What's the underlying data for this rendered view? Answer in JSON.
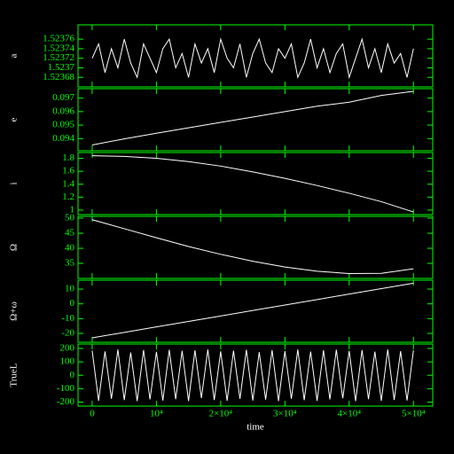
{
  "chart_data": [
    {
      "type": "line",
      "ylabel": "a",
      "color": "#ffffff",
      "x": [
        0,
        1000,
        2000,
        3000,
        4000,
        5000,
        6000,
        7000,
        8000,
        9000,
        10000,
        11000,
        12000,
        13000,
        14000,
        15000,
        16000,
        17000,
        18000,
        19000,
        20000,
        21000,
        22000,
        23000,
        24000,
        25000,
        26000,
        27000,
        28000,
        29000,
        30000,
        31000,
        32000,
        33000,
        34000,
        35000,
        36000,
        37000,
        38000,
        39000,
        40000,
        41000,
        42000,
        43000,
        44000,
        45000,
        46000,
        47000,
        48000,
        49000,
        50000
      ],
      "values": [
        1.52372,
        1.52375,
        1.52369,
        1.52374,
        1.5237,
        1.52376,
        1.52371,
        1.52368,
        1.52375,
        1.52372,
        1.52369,
        1.52374,
        1.52376,
        1.5237,
        1.52373,
        1.52368,
        1.52375,
        1.52371,
        1.52374,
        1.52369,
        1.52376,
        1.52372,
        1.5237,
        1.52375,
        1.52368,
        1.52373,
        1.52376,
        1.52371,
        1.52369,
        1.52374,
        1.52372,
        1.52375,
        1.52368,
        1.52371,
        1.52376,
        1.5237,
        1.52374,
        1.52369,
        1.52373,
        1.52375,
        1.52368,
        1.52372,
        1.52376,
        1.5237,
        1.52374,
        1.52369,
        1.52375,
        1.52371,
        1.52373,
        1.52368,
        1.52374
      ],
      "xlim": [
        -2200,
        53000
      ],
      "ylim": [
        1.52366,
        1.52379
      ],
      "yticks": [
        1.52368,
        1.5237,
        1.52372,
        1.52374,
        1.52376
      ]
    },
    {
      "type": "line",
      "ylabel": "e",
      "color": "#ffffff",
      "x": [
        0,
        5000,
        10000,
        15000,
        20000,
        25000,
        30000,
        35000,
        40000,
        45000,
        50000
      ],
      "values": [
        0.09353,
        0.09398,
        0.0944,
        0.0948,
        0.0952,
        0.0956,
        0.096,
        0.0964,
        0.0967,
        0.0972,
        0.0975
      ],
      "xlim": [
        -2200,
        53000
      ],
      "ylim": [
        0.0931,
        0.0977
      ],
      "yticks": [
        0.094,
        0.095,
        0.096,
        0.097
      ]
    },
    {
      "type": "line",
      "ylabel": "i",
      "color": "#ffffff",
      "x": [
        0,
        5000,
        10000,
        15000,
        20000,
        25000,
        30000,
        35000,
        40000,
        45000,
        50000
      ],
      "values": [
        1.84,
        1.83,
        1.8,
        1.75,
        1.68,
        1.59,
        1.49,
        1.38,
        1.26,
        1.13,
        0.97
      ],
      "xlim": [
        -2200,
        53000
      ],
      "ylim": [
        0.93,
        1.89
      ],
      "yticks": [
        1,
        1.2,
        1.4,
        1.6,
        1.8
      ]
    },
    {
      "type": "line",
      "ylabel": "Ω",
      "color": "#ffffff",
      "x": [
        0,
        5000,
        10000,
        15000,
        20000,
        25000,
        30000,
        35000,
        40000,
        45000,
        50000
      ],
      "values": [
        49.5,
        46.5,
        43.5,
        40.6,
        38,
        35.7,
        33.8,
        32.4,
        31.6,
        31.7,
        33.2
      ],
      "xlim": [
        -2200,
        53000
      ],
      "ylim": [
        30,
        50.6
      ],
      "yticks": [
        35,
        40,
        45,
        50
      ]
    },
    {
      "type": "line",
      "ylabel": "Ω+ω",
      "color": "#ffffff",
      "x": [
        0,
        5000,
        10000,
        15000,
        20000,
        25000,
        30000,
        35000,
        40000,
        45000,
        50000
      ],
      "values": [
        -23,
        -19.3,
        -15.6,
        -11.9,
        -8.2,
        -4.5,
        -0.8,
        2.9,
        6.6,
        10.3,
        14
      ],
      "xlim": [
        -2200,
        53000
      ],
      "ylim": [
        -26,
        16
      ],
      "yticks": [
        -20,
        -10,
        0,
        10
      ]
    },
    {
      "type": "line",
      "ylabel": "TrueL",
      "xlabel": "time",
      "color": "#ffffff",
      "x": [
        0,
        1000,
        2000,
        3000,
        4000,
        5000,
        6000,
        7000,
        8000,
        9000,
        10000,
        11000,
        12000,
        13000,
        14000,
        15000,
        16000,
        17000,
        18000,
        19000,
        20000,
        21000,
        22000,
        23000,
        24000,
        25000,
        26000,
        27000,
        28000,
        29000,
        30000,
        31000,
        32000,
        33000,
        34000,
        35000,
        36000,
        37000,
        38000,
        39000,
        40000,
        41000,
        42000,
        43000,
        44000,
        45000,
        46000,
        47000,
        48000,
        49000,
        50000
      ],
      "values": [
        185,
        -190,
        178,
        -175,
        192,
        -185,
        170,
        -192,
        188,
        -180,
        175,
        -188,
        190,
        -178,
        182,
        -192,
        186,
        -170,
        192,
        -185,
        178,
        -190,
        184,
        -176,
        190,
        -188,
        172,
        -182,
        188,
        -192,
        180,
        -175,
        192,
        -186,
        176,
        -190,
        186,
        -180,
        190,
        -172,
        182,
        -192,
        188,
        -178,
        176,
        -190,
        192,
        -184,
        180,
        -188,
        186
      ],
      "xlim": [
        -2200,
        53000
      ],
      "ylim": [
        -230,
        233
      ],
      "yticks": [
        -200,
        -100,
        0,
        100,
        200
      ],
      "xticks": [
        0,
        {
          "value": 10000,
          "label": "10⁴"
        },
        {
          "value": 20000,
          "label": "2×10⁴"
        },
        {
          "value": 30000,
          "label": "3×10⁴"
        },
        {
          "value": 40000,
          "label": "4×10⁴"
        },
        {
          "value": 50000,
          "label": "5×10⁴"
        }
      ]
    }
  ]
}
